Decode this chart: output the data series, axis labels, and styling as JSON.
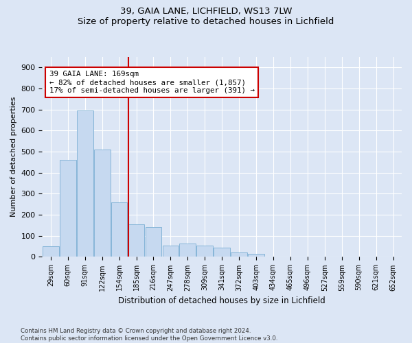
{
  "title1": "39, GAIA LANE, LICHFIELD, WS13 7LW",
  "title2": "Size of property relative to detached houses in Lichfield",
  "xlabel": "Distribution of detached houses by size in Lichfield",
  "ylabel": "Number of detached properties",
  "categories": [
    "29sqm",
    "60sqm",
    "91sqm",
    "122sqm",
    "154sqm",
    "185sqm",
    "216sqm",
    "247sqm",
    "278sqm",
    "309sqm",
    "341sqm",
    "372sqm",
    "403sqm",
    "434sqm",
    "465sqm",
    "496sqm",
    "527sqm",
    "559sqm",
    "590sqm",
    "621sqm",
    "652sqm"
  ],
  "values": [
    50,
    460,
    695,
    510,
    260,
    155,
    140,
    55,
    65,
    55,
    45,
    20,
    15,
    0,
    0,
    0,
    0,
    0,
    0,
    0,
    0
  ],
  "bar_color": "#c6d9f0",
  "bar_edge_color": "#7bafd4",
  "annotation_line1": "39 GAIA LANE: 169sqm",
  "annotation_line2": "← 82% of detached houses are smaller (1,857)",
  "annotation_line3": "17% of semi-detached houses are larger (391) →",
  "vline_x_index": 4.52,
  "vline_color": "#cc0000",
  "annotation_box_color": "#cc0000",
  "ylim": [
    0,
    950
  ],
  "yticks": [
    0,
    100,
    200,
    300,
    400,
    500,
    600,
    700,
    800,
    900
  ],
  "footnote1": "Contains HM Land Registry data © Crown copyright and database right 2024.",
  "footnote2": "Contains public sector information licensed under the Open Government Licence v3.0.",
  "bg_color": "#dce6f5",
  "plot_bg_color": "#dce6f5"
}
